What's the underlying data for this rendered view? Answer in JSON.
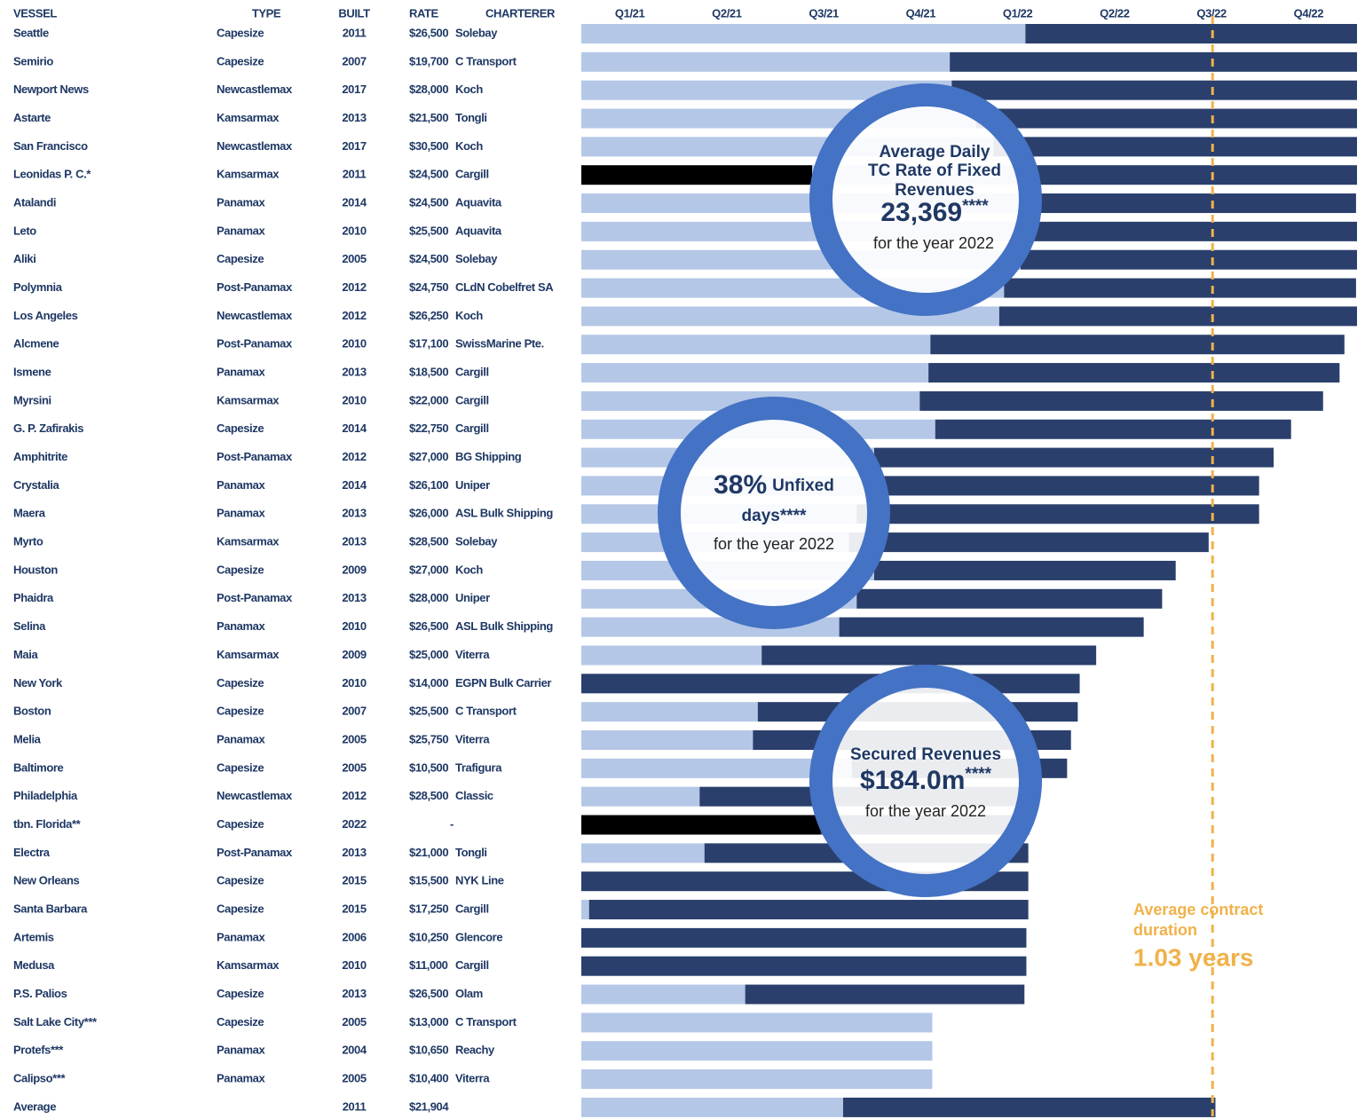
{
  "chart_data": {
    "type": "gantt",
    "columns": [
      "VESSEL",
      "TYPE",
      "BUILT",
      "RATE",
      "CHARTERER"
    ],
    "categories": [
      "Seattle",
      "Semirio",
      "Newport News",
      "Astarte",
      "San Francisco",
      "Leonidas P. C.*",
      "Atalandi",
      "Leto",
      "Aliki",
      "Polymnia",
      "Los Angeles",
      "Alcmene",
      "Ismene",
      "Myrsini",
      "G. P. Zafirakis",
      "Amphitrite",
      "Crystalia",
      "Maera",
      "Myrto",
      "Houston",
      "Phaidra",
      "Selina",
      "Maia",
      "New York",
      "Boston",
      "Melia",
      "Baltimore",
      "Philadelphia",
      "tbn. Florida**",
      "Electra",
      "New Orleans",
      "Santa Barbara",
      "Artemis",
      "Medusa",
      "P.S. Palios",
      "Salt Lake City***",
      "Protefs***",
      "Calipso***",
      "Average"
    ],
    "rows": [
      [
        "Capesize",
        "2011",
        "$26,500",
        "Solebay"
      ],
      [
        "Capesize",
        "2007",
        "$19,700",
        "C Transport"
      ],
      [
        "Newcastlemax",
        "2017",
        "$28,000",
        "Koch"
      ],
      [
        "Kamsarmax",
        "2013",
        "$21,500",
        "Tongli"
      ],
      [
        "Newcastlemax",
        "2017",
        "$30,500",
        "Koch"
      ],
      [
        "Kamsarmax",
        "2011",
        "$24,500",
        "Cargill"
      ],
      [
        "Panamax",
        "2014",
        "$24,500",
        "Aquavita"
      ],
      [
        "Panamax",
        "2010",
        "$25,500",
        "Aquavita"
      ],
      [
        "Capesize",
        "2005",
        "$24,500",
        "Solebay"
      ],
      [
        "Post-Panamax",
        "2012",
        "$24,750",
        "CLdN Cobelfret SA"
      ],
      [
        "Newcastlemax",
        "2012",
        "$26,250",
        "Koch"
      ],
      [
        "Post-Panamax",
        "2010",
        "$17,100",
        "SwissMarine Pte."
      ],
      [
        "Panamax",
        "2013",
        "$18,500",
        "Cargill"
      ],
      [
        "Kamsarmax",
        "2010",
        "$22,000",
        "Cargill"
      ],
      [
        "Capesize",
        "2014",
        "$22,750",
        "Cargill"
      ],
      [
        "Post-Panamax",
        "2012",
        "$27,000",
        "BG Shipping"
      ],
      [
        "Panamax",
        "2014",
        "$26,100",
        "Uniper"
      ],
      [
        "Panamax",
        "2013",
        "$26,000",
        "ASL Bulk Shipping"
      ],
      [
        "Kamsarmax",
        "2013",
        "$28,500",
        "Solebay"
      ],
      [
        "Capesize",
        "2009",
        "$27,000",
        "Koch"
      ],
      [
        "Post-Panamax",
        "2013",
        "$28,000",
        "Uniper"
      ],
      [
        "Panamax",
        "2010",
        "$26,500",
        "ASL Bulk Shipping"
      ],
      [
        "Kamsarmax",
        "2009",
        "$25,000",
        "Viterra"
      ],
      [
        "Capesize",
        "2010",
        "$14,000",
        "EGPN Bulk Carrier"
      ],
      [
        "Capesize",
        "2007",
        "$25,500",
        "C Transport"
      ],
      [
        "Panamax",
        "2005",
        "$25,750",
        "Viterra"
      ],
      [
        "Capesize",
        "2005",
        "$10,500",
        "Trafigura"
      ],
      [
        "Newcastlemax",
        "2012",
        "$28,500",
        "Classic"
      ],
      [
        "Capesize",
        "2022",
        "-",
        null
      ],
      [
        "Post-Panamax",
        "2013",
        "$21,000",
        "Tongli"
      ],
      [
        "Capesize",
        "2015",
        "$15,500",
        "NYK Line"
      ],
      [
        "Capesize",
        "2015",
        "$17,250",
        "Cargill"
      ],
      [
        "Panamax",
        "2006",
        "$10,250",
        "Glencore"
      ],
      [
        "Kamsarmax",
        "2010",
        "$11,000",
        "Cargill"
      ],
      [
        "Capesize",
        "2013",
        "$26,500",
        "Olam"
      ],
      [
        "Capesize",
        "2005",
        "$13,000",
        "C Transport"
      ],
      [
        "Panamax",
        "2004",
        "$10,650",
        "Reachy"
      ],
      [
        "Panamax",
        "2005",
        "$10,400",
        "Viterra"
      ],
      [
        null,
        "2011",
        "$21,904",
        null
      ]
    ],
    "xlim": [
      0,
      8
    ],
    "xticks": [
      {
        "value": 0.5,
        "label": "Q1/21"
      },
      {
        "value": 1.5,
        "label": "Q2/21"
      },
      {
        "value": 2.5,
        "label": "Q3/21"
      },
      {
        "value": 3.5,
        "label": "Q4/21"
      },
      {
        "value": 4.5,
        "label": "Q1/22"
      },
      {
        "value": 5.5,
        "label": "Q2/22"
      },
      {
        "value": 6.5,
        "label": "Q3/22"
      },
      {
        "value": 7.5,
        "label": "Q4/22"
      }
    ],
    "series": [
      {
        "color": "#000000",
        "values": [
          0,
          0,
          0,
          0,
          0,
          2.38,
          0,
          0,
          0,
          0,
          0,
          0,
          0,
          0,
          0,
          0,
          0,
          0,
          0,
          0,
          0,
          0,
          0,
          0,
          0,
          0,
          0,
          0,
          2.47,
          0,
          0,
          0,
          0,
          0,
          0,
          0,
          0,
          0,
          0
        ]
      },
      {
        "color": "#b4c7e7",
        "values": [
          4.58,
          3.8,
          3.82,
          4.07,
          4.25,
          2.29,
          4.71,
          4.67,
          4.53,
          4.36,
          4.31,
          3.6,
          3.58,
          3.49,
          3.65,
          3.02,
          3.11,
          2.84,
          2.76,
          3.02,
          2.84,
          2.66,
          1.86,
          0,
          1.82,
          1.77,
          2.79,
          1.22,
          0,
          1.27,
          0,
          0.08,
          0,
          0,
          1.69,
          3.62,
          3.62,
          3.62,
          2.7
        ]
      },
      {
        "color": "#2a3f6c",
        "values": [
          3.42,
          4.2,
          4.18,
          3.93,
          3.75,
          3.33,
          3.28,
          3.33,
          3.47,
          3.63,
          3.69,
          4.27,
          4.24,
          4.16,
          3.67,
          4.12,
          3.88,
          4.15,
          3.71,
          3.11,
          3.15,
          3.14,
          3.45,
          5.14,
          3.3,
          3.28,
          2.22,
          3.4,
          2.15,
          3.34,
          4.61,
          4.53,
          4.59,
          4.59,
          2.88,
          0,
          0,
          0,
          3.84
        ]
      }
    ],
    "reference": {
      "x": 6.51,
      "color": "#f0b24a",
      "lines": [
        "Average contract",
        "duration"
      ],
      "value": "1.03 years"
    },
    "annotations": [
      {
        "lines": [
          "Average Daily",
          "TC Rate of Fixed",
          "Revenues"
        ],
        "value": "23,369",
        "suffix": "****",
        "note": "for the year 2022"
      },
      {
        "value": "38%",
        "suffix": "Unfixed",
        "lines": [
          "days****"
        ],
        "note": "for the year 2022"
      },
      {
        "lines": [
          "Secured Revenues"
        ],
        "value": "$184.0m",
        "suffix": "****",
        "note": "for the year 2022"
      }
    ]
  }
}
